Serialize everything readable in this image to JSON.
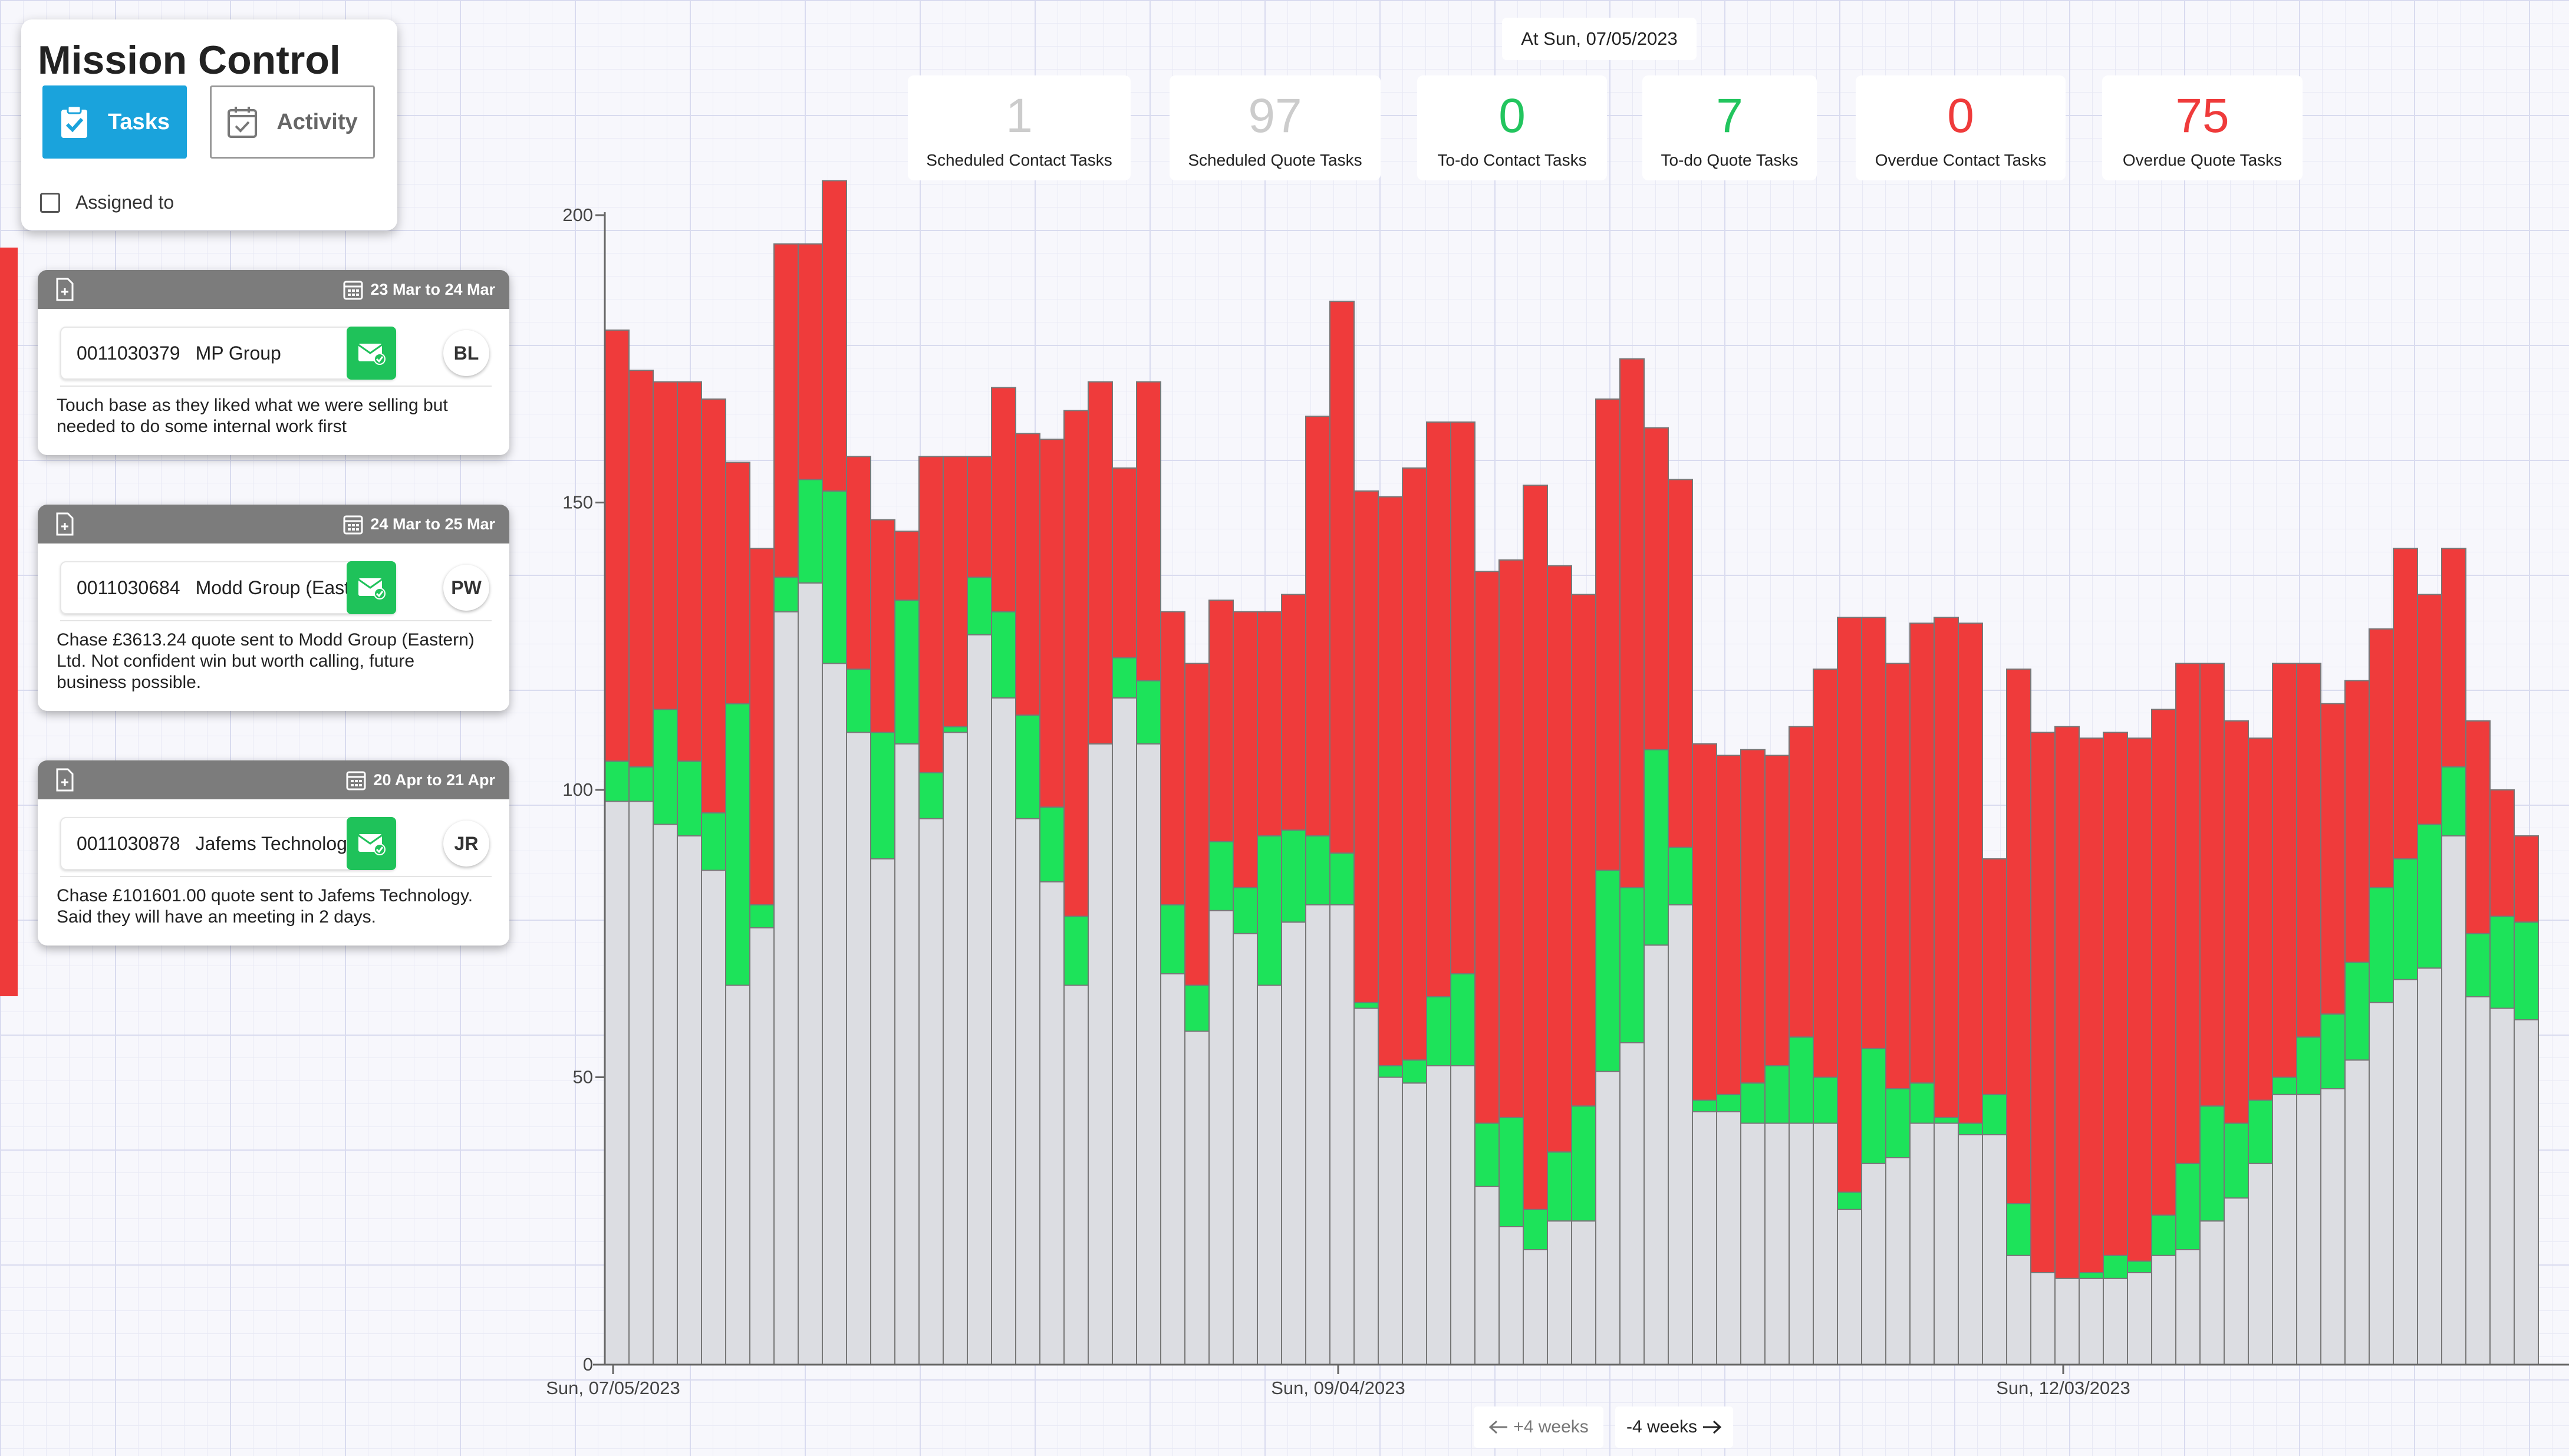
{
  "app": {
    "title": "Mission Control"
  },
  "nav": {
    "tasks_label": "Tasks",
    "activity_label": "Activity",
    "assigned_label": "Assigned to"
  },
  "date_label": "At Sun, 07/05/2023",
  "stats": [
    {
      "value": "1",
      "label": "Scheduled Contact Tasks",
      "color": "#cccccc"
    },
    {
      "value": "97",
      "label": "Scheduled Quote Tasks",
      "color": "#cccccc"
    },
    {
      "value": "0",
      "label": "To-do Contact Tasks",
      "color": "#22c55e"
    },
    {
      "value": "7",
      "label": "To-do Quote Tasks",
      "color": "#22c55e"
    },
    {
      "value": "0",
      "label": "Overdue Contact Tasks",
      "color": "#ef3b3b"
    },
    {
      "value": "75",
      "label": "Overdue Quote Tasks",
      "color": "#ef3b3b"
    }
  ],
  "tasks": [
    {
      "date_range": "23 Mar to 24 Mar",
      "ref": "0011030379",
      "company": "MP Group",
      "initials": "BL",
      "note": "Touch base as they liked what we were selling but needed to do some internal work first"
    },
    {
      "date_range": "24 Mar to 25 Mar",
      "ref": "0011030684",
      "company": "Modd Group (Easte…",
      "initials": "PW",
      "note": "Chase £3613.24 quote sent to Modd Group (Eastern) Ltd. Not confident win but worth calling, future business possible."
    },
    {
      "date_range": "20 Apr to 21 Apr",
      "ref": "0011030878",
      "company": "Jafems Technology",
      "initials": "JR",
      "note": "Chase £101601.00 quote sent to Jafems Technology. Said they will have an meeting in 2 days."
    }
  ],
  "pager": {
    "prev_label": "+4 weeks",
    "next_label": "-4 weeks"
  },
  "chart_data": {
    "type": "bar",
    "stacked": true,
    "x_tick_labels": [
      "Sun, 07/05/2023",
      "Sun, 09/04/2023",
      "Sun, 12/03/2023"
    ],
    "y_ticks": [
      0,
      50,
      100,
      150,
      200
    ],
    "ylim": [
      0,
      200
    ],
    "series": [
      {
        "color": "#dcdde2",
        "values": [
          98,
          98,
          94,
          92,
          86,
          66,
          76,
          131,
          136,
          122,
          110,
          88,
          108,
          95,
          110,
          127,
          116,
          95,
          84,
          66,
          108,
          116,
          108,
          68,
          58,
          79,
          75,
          66,
          77,
          80,
          80,
          62,
          50,
          49,
          52,
          52,
          31,
          24,
          20,
          25,
          25,
          51,
          56,
          73,
          80,
          44,
          44,
          42,
          42,
          42,
          42,
          27,
          35,
          36,
          42,
          42,
          40,
          40,
          19,
          16,
          15,
          15,
          15,
          16,
          19,
          20,
          25,
          29,
          35,
          47,
          47,
          48,
          53,
          63,
          67,
          69,
          92,
          64,
          62,
          60
        ]
      },
      {
        "color": "#1de35a",
        "values": [
          7,
          6,
          20,
          13,
          10,
          49,
          4,
          6,
          18,
          30,
          11,
          22,
          25,
          8,
          1,
          10,
          15,
          18,
          13,
          12,
          0,
          7,
          11,
          12,
          8,
          12,
          8,
          26,
          16,
          12,
          9,
          1,
          2,
          4,
          12,
          16,
          11,
          19,
          7,
          12,
          20,
          35,
          27,
          34,
          10,
          2,
          3,
          7,
          10,
          15,
          8,
          3,
          20,
          12,
          7,
          1,
          2,
          7,
          9,
          0,
          0,
          1,
          4,
          2,
          7,
          15,
          20,
          13,
          11,
          3,
          10,
          13,
          17,
          20,
          21,
          25,
          12,
          11,
          16,
          17
        ]
      },
      {
        "color": "#ef3b3b",
        "values": [
          75,
          69,
          57,
          66,
          72,
          42,
          62,
          58,
          41,
          54,
          37,
          37,
          12,
          55,
          47,
          21,
          39,
          49,
          64,
          88,
          63,
          33,
          52,
          51,
          56,
          42,
          48,
          39,
          41,
          73,
          96,
          89,
          99,
          103,
          100,
          96,
          96,
          97,
          126,
          102,
          89,
          82,
          92,
          56,
          64,
          62,
          59,
          58,
          54,
          54,
          71,
          100,
          75,
          74,
          80,
          87,
          87,
          41,
          93,
          94,
          96,
          93,
          91,
          91,
          88,
          87,
          77,
          70,
          63,
          72,
          65,
          54,
          49,
          45,
          54,
          40,
          38,
          37,
          22,
          15
        ]
      }
    ]
  }
}
